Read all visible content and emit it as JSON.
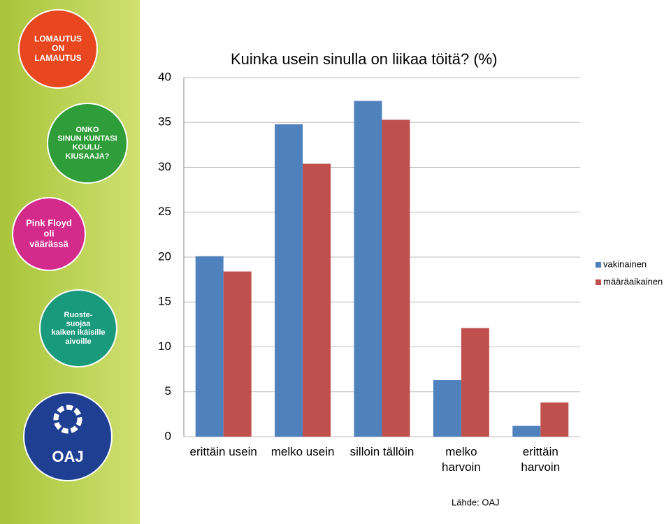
{
  "sidebar": {
    "badges": [
      {
        "lines": [
          "LOMAUTUS",
          "ON",
          "LAMAUTUS"
        ]
      },
      {
        "lines": [
          "ONKO",
          "SINUN KUNTASI",
          "KOULU-",
          "KIUSAAJA?"
        ]
      },
      {
        "lines": [
          "Pink Floyd",
          "oli",
          "väärässä"
        ]
      },
      {
        "lines": [
          "Ruoste-",
          "suojaa",
          "kaiken ikäisille",
          "aivoille"
        ]
      },
      {
        "lines": [
          "OAJ"
        ]
      }
    ]
  },
  "chart_data": {
    "type": "bar",
    "title": "Kuinka usein sinulla on liikaa töitä? (%)",
    "categories": [
      "erittäin usein",
      "melko usein",
      "silloin tällöin",
      "melko\nharvoin",
      "erittäin\nharvoin"
    ],
    "series": [
      {
        "name": "vakinainen",
        "color": "#4f81bd",
        "values": [
          20.1,
          34.8,
          37.4,
          6.3,
          1.2
        ]
      },
      {
        "name": "määräaikainen",
        "color": "#c0504d",
        "values": [
          18.4,
          30.4,
          35.3,
          12.1,
          3.8
        ]
      }
    ],
    "ylim": [
      0,
      40
    ],
    "yticks": [
      0,
      5,
      10,
      15,
      20,
      25,
      30,
      35,
      40
    ],
    "grid": true,
    "legend": "right",
    "source": "Lähde: OAJ"
  }
}
